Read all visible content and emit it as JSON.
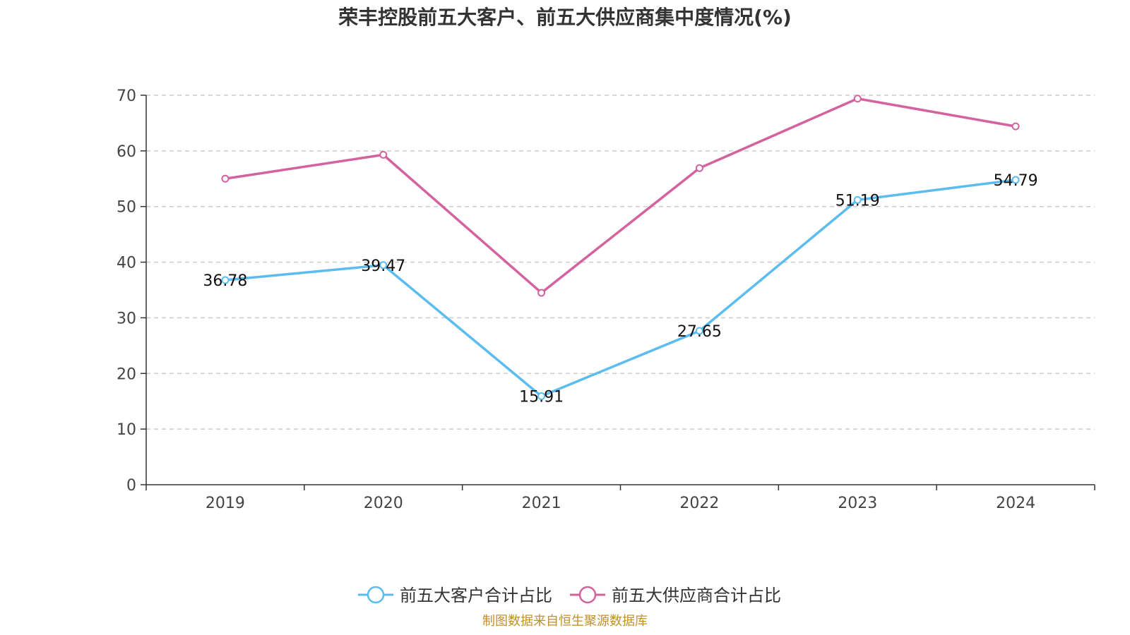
{
  "chart_data": {
    "type": "line",
    "title": "荣丰控股前五大客户、前五大供应商集中度情况(%)",
    "categories": [
      "2019",
      "2020",
      "2021",
      "2022",
      "2023",
      "2024"
    ],
    "ylim": [
      0,
      70
    ],
    "yticks": [
      0,
      10,
      20,
      30,
      40,
      50,
      60,
      70
    ],
    "grid": true,
    "legend_position": "bottom-center",
    "series": [
      {
        "name": "前五大客户合计占比",
        "color": "#5bbcf0",
        "values": [
          36.78,
          39.47,
          15.91,
          27.65,
          51.19,
          54.79
        ],
        "show_labels": true
      },
      {
        "name": "前五大供应商合计占比",
        "color": "#d4629f",
        "values": [
          55.0,
          59.3,
          34.5,
          56.9,
          69.4,
          64.4
        ],
        "show_labels": false
      }
    ],
    "source": "制图数据来自恒生聚源数据库"
  }
}
